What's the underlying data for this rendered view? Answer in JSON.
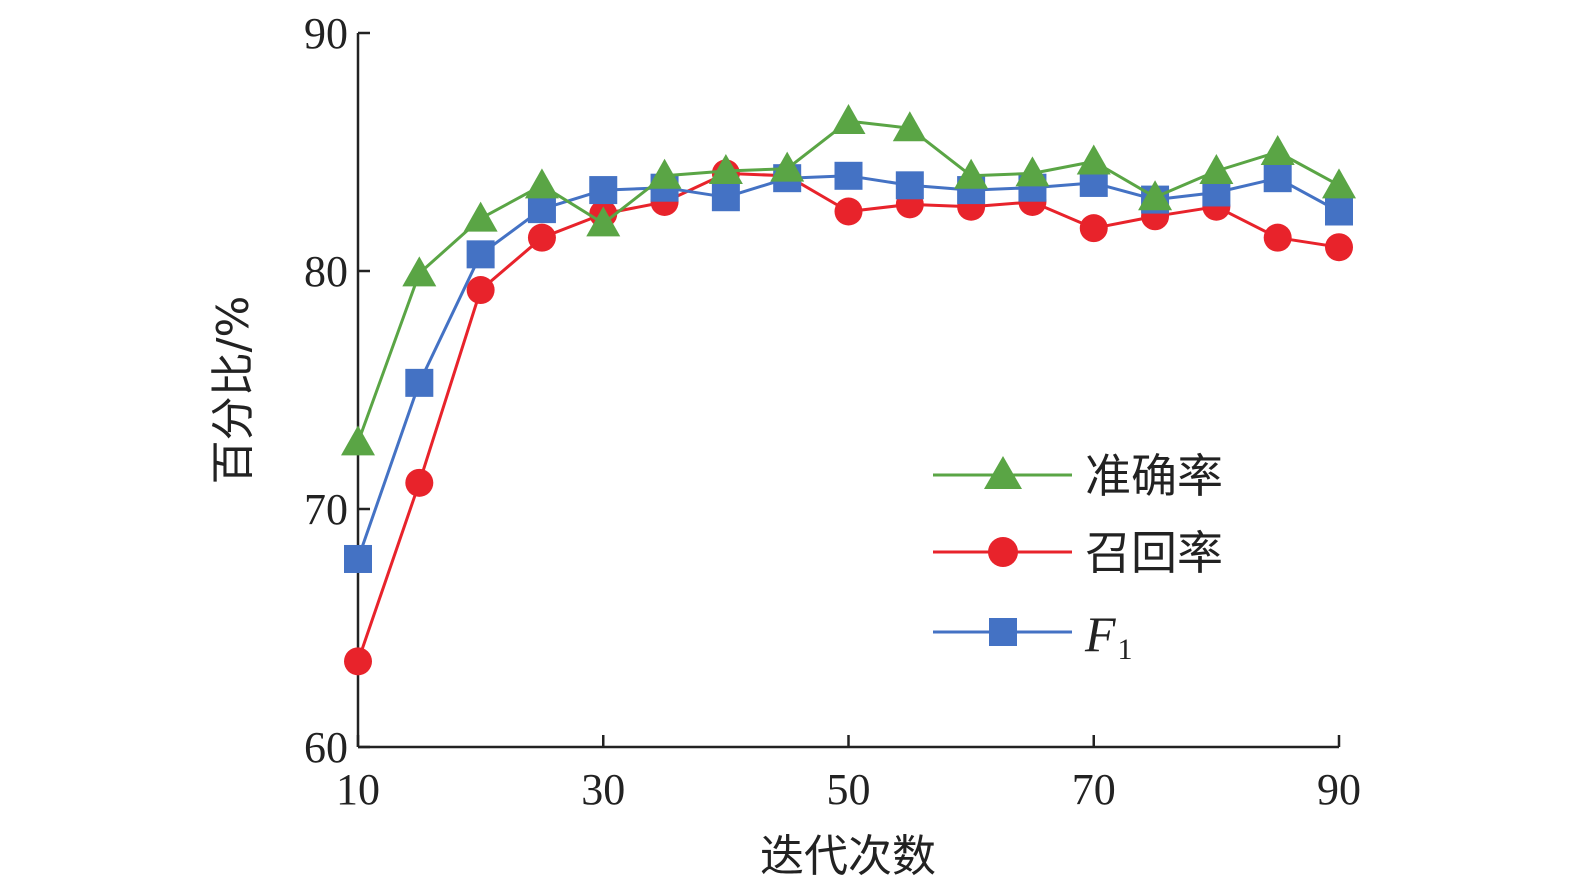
{
  "chart_data": {
    "type": "line",
    "xlabel": "迭代次数",
    "ylabel": "百分比/%",
    "xlim": [
      10,
      90
    ],
    "ylim": [
      60,
      90
    ],
    "xticks": [
      10,
      30,
      50,
      70,
      90
    ],
    "yticks": [
      60,
      70,
      80,
      90
    ],
    "grid": false,
    "legend_position": "right",
    "x": [
      10,
      15,
      20,
      25,
      30,
      35,
      40,
      45,
      50,
      55,
      60,
      65,
      70,
      75,
      80,
      85,
      90
    ],
    "series": [
      {
        "name": "准确率",
        "marker": "triangle",
        "color": "#5aa545",
        "values": [
          72.8,
          79.9,
          82.2,
          83.6,
          82.0,
          84.0,
          84.2,
          84.3,
          86.3,
          86.0,
          84.0,
          84.1,
          84.6,
          83.1,
          84.2,
          85.0,
          83.6
        ]
      },
      {
        "name": "召回率",
        "marker": "circle",
        "color": "#e8232b",
        "values": [
          63.6,
          71.1,
          79.2,
          81.4,
          82.4,
          82.9,
          84.1,
          84.0,
          82.5,
          82.8,
          82.7,
          82.9,
          81.8,
          82.3,
          82.7,
          81.4,
          81.0
        ]
      },
      {
        "name": "F",
        "name_subscript": "1",
        "marker": "square",
        "color": "#4472c4",
        "values": [
          67.9,
          75.3,
          80.7,
          82.6,
          83.4,
          83.5,
          83.1,
          83.9,
          84.0,
          83.6,
          83.4,
          83.5,
          83.7,
          83.0,
          83.3,
          83.9,
          82.5
        ]
      }
    ]
  }
}
